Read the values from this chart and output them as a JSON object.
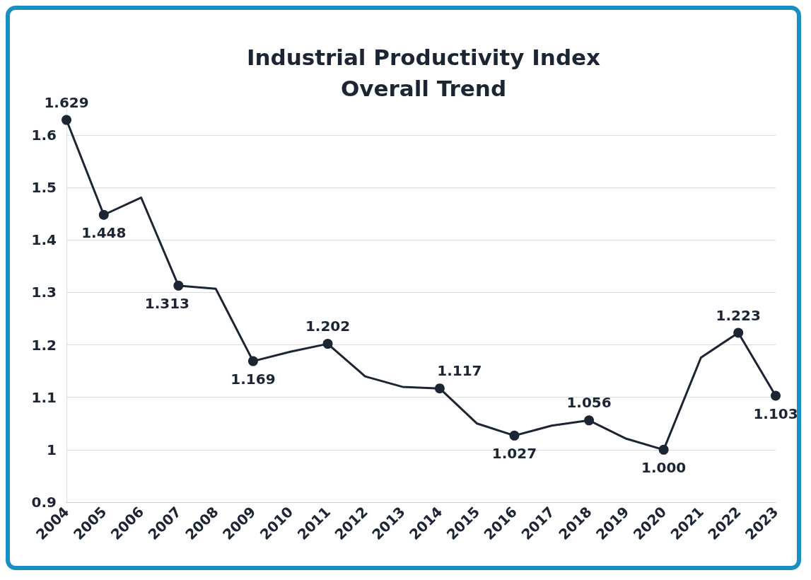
{
  "chart_data": {
    "type": "line",
    "title": "Industrial Productivity Index\nOverall Trend",
    "categories": [
      "2004",
      "2005",
      "2006",
      "2007",
      "2008",
      "2009",
      "2010",
      "2011",
      "2012",
      "2013",
      "2014",
      "2015",
      "2016",
      "2017",
      "2018",
      "2019",
      "2020",
      "2021",
      "2022",
      "2023"
    ],
    "series": [
      {
        "color": "#1b2533",
        "values": [
          1.629,
          1.448,
          1.481,
          1.313,
          1.307,
          1.169,
          1.187,
          1.202,
          1.14,
          1.12,
          1.117,
          1.05,
          1.027,
          1.046,
          1.056,
          1.021,
          1.0,
          1.176,
          1.223,
          1.103
        ],
        "value_labels": [
          "1.629",
          "1.448",
          null,
          "1.313",
          null,
          "1.169",
          null,
          "1.202",
          null,
          null,
          "1.117",
          null,
          "1.027",
          null,
          "1.056",
          null,
          "1.000",
          null,
          "1.223",
          "1.103"
        ]
      }
    ],
    "ylim": [
      0.9,
      1.65
    ],
    "yticks": [
      0.9,
      1,
      1.1,
      1.2,
      1.3,
      1.4,
      1.5,
      1.6
    ],
    "grid": "y",
    "marker": "circle",
    "line_style": "solid"
  }
}
